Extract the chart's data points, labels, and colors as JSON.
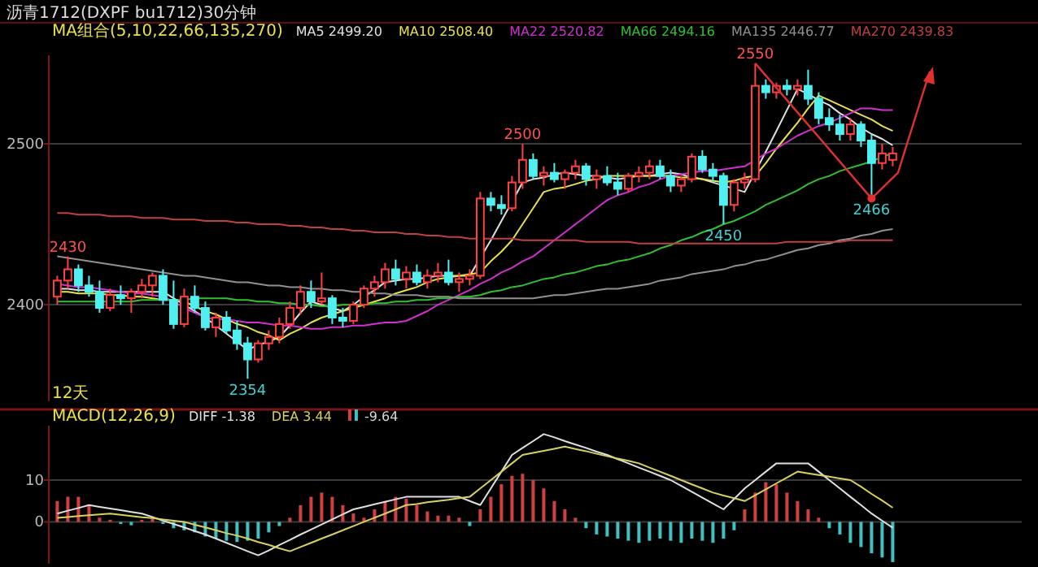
{
  "chart_data": [
    {
      "type": "candlestick",
      "title": "沥青1712(DXPF bu1712)30分钟",
      "legend_title": "MA组合(5,10,22,66,135,270)",
      "legend": "top",
      "grid": "y",
      "tick_labels": "y",
      "categories": [
        null,
        null,
        null,
        null,
        null,
        null,
        null,
        null,
        null,
        null,
        null,
        null,
        null,
        null,
        null,
        null,
        null,
        null,
        null,
        null,
        null,
        null,
        null,
        null,
        null,
        null,
        null,
        null,
        null,
        null,
        null,
        null,
        null,
        null,
        null,
        null,
        null,
        null,
        null,
        null,
        null,
        null,
        null,
        null,
        null,
        null,
        null,
        null,
        null,
        null,
        null,
        null,
        null,
        null,
        null,
        null,
        null,
        null,
        null,
        null,
        null,
        null,
        null,
        null,
        null,
        null,
        null,
        null,
        null,
        null,
        null,
        null,
        null,
        null,
        null,
        null,
        null,
        null,
        null,
        null
      ],
      "ohlc": [
        [
          2405,
          2418,
          2400,
          2415
        ],
        [
          2415,
          2430,
          2410,
          2422
        ],
        [
          2422,
          2425,
          2408,
          2412
        ],
        [
          2412,
          2418,
          2405,
          2408
        ],
        [
          2408,
          2415,
          2395,
          2398
        ],
        [
          2398,
          2410,
          2396,
          2406
        ],
        [
          2406,
          2412,
          2400,
          2404
        ],
        [
          2404,
          2410,
          2395,
          2408
        ],
        [
          2408,
          2416,
          2404,
          2412
        ],
        [
          2412,
          2420,
          2405,
          2418
        ],
        [
          2418,
          2422,
          2400,
          2403
        ],
        [
          2403,
          2415,
          2385,
          2388
        ],
        [
          2388,
          2410,
          2386,
          2405
        ],
        [
          2405,
          2412,
          2395,
          2398
        ],
        [
          2398,
          2402,
          2384,
          2386
        ],
        [
          2386,
          2395,
          2380,
          2392
        ],
        [
          2392,
          2396,
          2382,
          2384
        ],
        [
          2384,
          2390,
          2372,
          2376
        ],
        [
          2376,
          2380,
          2354,
          2366
        ],
        [
          2366,
          2378,
          2364,
          2376
        ],
        [
          2376,
          2384,
          2372,
          2380
        ],
        [
          2380,
          2392,
          2376,
          2388
        ],
        [
          2388,
          2402,
          2385,
          2398
        ],
        [
          2398,
          2412,
          2394,
          2408
        ],
        [
          2408,
          2415,
          2398,
          2402
        ],
        [
          2402,
          2420,
          2400,
          2404
        ],
        [
          2404,
          2406,
          2388,
          2392
        ],
        [
          2392,
          2398,
          2386,
          2390
        ],
        [
          2390,
          2402,
          2388,
          2400
        ],
        [
          2400,
          2412,
          2398,
          2410
        ],
        [
          2410,
          2418,
          2405,
          2414
        ],
        [
          2414,
          2426,
          2410,
          2422
        ],
        [
          2422,
          2428,
          2412,
          2416
        ],
        [
          2416,
          2424,
          2410,
          2420
        ],
        [
          2420,
          2425,
          2412,
          2414
        ],
        [
          2414,
          2422,
          2410,
          2418
        ],
        [
          2418,
          2426,
          2414,
          2420
        ],
        [
          2420,
          2428,
          2412,
          2414
        ],
        [
          2414,
          2420,
          2408,
          2416
        ],
        [
          2416,
          2422,
          2412,
          2418
        ],
        [
          2418,
          2470,
          2416,
          2466
        ],
        [
          2466,
          2470,
          2458,
          2462
        ],
        [
          2462,
          2468,
          2456,
          2460
        ],
        [
          2460,
          2480,
          2458,
          2476
        ],
        [
          2476,
          2500,
          2472,
          2490
        ],
        [
          2490,
          2494,
          2478,
          2480
        ],
        [
          2480,
          2486,
          2474,
          2482
        ],
        [
          2482,
          2488,
          2476,
          2478
        ],
        [
          2478,
          2484,
          2472,
          2482
        ],
        [
          2482,
          2490,
          2478,
          2486
        ],
        [
          2486,
          2488,
          2474,
          2478
        ],
        [
          2478,
          2484,
          2472,
          2480
        ],
        [
          2480,
          2486,
          2474,
          2476
        ],
        [
          2476,
          2482,
          2468,
          2472
        ],
        [
          2472,
          2482,
          2470,
          2480
        ],
        [
          2480,
          2486,
          2476,
          2482
        ],
        [
          2482,
          2490,
          2478,
          2486
        ],
        [
          2486,
          2490,
          2478,
          2480
        ],
        [
          2480,
          2484,
          2470,
          2474
        ],
        [
          2474,
          2480,
          2470,
          2478
        ],
        [
          2478,
          2494,
          2476,
          2492
        ],
        [
          2492,
          2496,
          2482,
          2484
        ],
        [
          2484,
          2488,
          2476,
          2480
        ],
        [
          2480,
          2482,
          2450,
          2462
        ],
        [
          2462,
          2478,
          2458,
          2476
        ],
        [
          2476,
          2482,
          2472,
          2478
        ],
        [
          2478,
          2550,
          2476,
          2536
        ],
        [
          2536,
          2540,
          2528,
          2532
        ],
        [
          2532,
          2538,
          2528,
          2536
        ],
        [
          2536,
          2540,
          2530,
          2534
        ],
        [
          2534,
          2540,
          2530,
          2536
        ],
        [
          2536,
          2546,
          2524,
          2528
        ],
        [
          2528,
          2532,
          2512,
          2516
        ],
        [
          2516,
          2522,
          2508,
          2512
        ],
        [
          2512,
          2518,
          2502,
          2506
        ],
        [
          2506,
          2516,
          2502,
          2512
        ],
        [
          2512,
          2514,
          2498,
          2502
        ],
        [
          2502,
          2506,
          2466,
          2488
        ],
        [
          2488,
          2500,
          2484,
          2494
        ],
        [
          2490,
          2498,
          2486,
          2494
        ]
      ],
      "colors": [
        "#ff4040",
        "#ff4040",
        "#50f0f0",
        "#50f0f0",
        "#50f0f0",
        "#ff4040",
        "#50f0f0",
        "#ff4040",
        "#ff4040",
        "#ff4040",
        "#50f0f0",
        "#50f0f0",
        "#ff4040",
        "#50f0f0",
        "#50f0f0",
        "#ff4040",
        "#50f0f0",
        "#50f0f0",
        "#50f0f0",
        "#ff4040",
        "#ff4040",
        "#ff4040",
        "#ff4040",
        "#ff4040",
        "#50f0f0",
        "#ff4040",
        "#50f0f0",
        "#50f0f0",
        "#ff4040",
        "#ff4040",
        "#ff4040",
        "#ff4040",
        "#50f0f0",
        "#ff4040",
        "#50f0f0",
        "#ff4040",
        "#ff4040",
        "#50f0f0",
        "#ff4040",
        "#ff4040",
        "#ff4040",
        "#50f0f0",
        "#50f0f0",
        "#ff4040",
        "#ff4040",
        "#50f0f0",
        "#ff4040",
        "#50f0f0",
        "#ff4040",
        "#ff4040",
        "#50f0f0",
        "#ff4040",
        "#50f0f0",
        "#50f0f0",
        "#ff4040",
        "#ff4040",
        "#ff4040",
        "#50f0f0",
        "#50f0f0",
        "#ff4040",
        "#ff4040",
        "#50f0f0",
        "#50f0f0",
        "#50f0f0",
        "#ff4040",
        "#ff4040",
        "#ff4040",
        "#50f0f0",
        "#ff4040",
        "#50f0f0",
        "#ff4040",
        "#50f0f0",
        "#50f0f0",
        "#50f0f0",
        "#50f0f0",
        "#ff4040",
        "#50f0f0",
        "#50f0f0",
        "#ff4040",
        "#ff4040"
      ],
      "series": [
        {
          "name": "MA5 2499.20",
          "type": "line",
          "color": "#e0e0e0",
          "values": [
            2410,
            2410,
            2409,
            2409,
            2408,
            2408,
            2408,
            2408,
            2408,
            2408,
            2408,
            2404,
            2400,
            2396,
            2392,
            2387,
            2382,
            2377,
            2372,
            2375,
            2377,
            2380,
            2387,
            2395,
            2402,
            2400,
            2398,
            2396,
            2400,
            2405,
            2409,
            2414,
            2415,
            2416,
            2416,
            2417,
            2418,
            2418,
            2418,
            2418,
            2429,
            2440,
            2452,
            2464,
            2476,
            2478,
            2479,
            2481,
            2482,
            2481,
            2480,
            2480,
            2479,
            2478,
            2479,
            2480,
            2480,
            2481,
            2482,
            2481,
            2479,
            2478,
            2476,
            2474,
            2472,
            2470,
            null,
            2495,
            2508,
            2521,
            2534,
            2531,
            2527,
            2524,
            2519,
            2515,
            2510,
            2506,
            2503,
            2499
          ]
        },
        {
          "name": "MA10 2508.40",
          "type": "line",
          "color": "#e8e050",
          "values": [
            2408,
            2408,
            2407,
            2407,
            2407,
            2406,
            2406,
            2405,
            2405,
            2404,
            2403,
            2403,
            2402,
            2399,
            2396,
            2394,
            2391,
            2388,
            2386,
            2383,
            2381,
            2378,
            2382,
            2385,
            2389,
            2392,
            2394,
            2396,
            2398,
            2400,
            2402,
            2404,
            2407,
            2409,
            2411,
            2414,
            2416,
            2417,
            2418,
            2419,
            2420,
            2427,
            2433,
            2440,
            2450,
            2460,
            2470,
            2472,
            2473,
            2475,
            2477,
            2478,
            2480,
            2480,
            2480,
            2480,
            2480,
            2480,
            2480,
            2479,
            2479,
            2478,
            2477,
            2476,
            2477,
            2479,
            2480,
            2488,
            2497,
            2505,
            2513,
            2522,
            2530,
            2527,
            2524,
            2521,
            2518,
            2515,
            2511,
            2508
          ]
        },
        {
          "name": "MA22 2520.82",
          "type": "line",
          "color": "#d030d0",
          "values": [
            2413,
            2412,
            2411,
            2411,
            2410,
            2409,
            2408,
            2407,
            2407,
            2406,
            2405,
            2402,
            2398,
            2395,
            2392,
            2391,
            2391,
            2390,
            2389,
            2389,
            2388,
            2387,
            2387,
            2386,
            2385,
            2385,
            2386,
            2386,
            2387,
            2387,
            2388,
            2389,
            2389,
            2390,
            2393,
            2396,
            2400,
            2403,
            2406,
            2409,
            2413,
            2416,
            2420,
            2423,
            2427,
            2430,
            2435,
            2440,
            2445,
            2450,
            2455,
            2460,
            2465,
            2468,
            2470,
            2473,
            2475,
            2478,
            2480,
            2481,
            2482,
            2483,
            2483,
            2484,
            2485,
            2486,
            2490,
            2494,
            2497,
            2501,
            2505,
            2508,
            2511,
            2513,
            2516,
            2519,
            2522,
            2522,
            2521,
            2521
          ]
        },
        {
          "name": "MA66 2494.16",
          "type": "line",
          "color": "#30c030",
          "values": [
            2402,
            2402,
            2402,
            2402,
            2402,
            2402,
            2402,
            2402,
            2403,
            2403,
            2403,
            2403,
            2403,
            2404,
            2404,
            2404,
            2404,
            2403,
            2403,
            2402,
            2402,
            2401,
            2401,
            2400,
            2400,
            2399,
            2399,
            2400,
            2400,
            2400,
            2401,
            2401,
            2402,
            2402,
            2403,
            2403,
            2404,
            2404,
            2405,
            2405,
            2406,
            2408,
            2409,
            2411,
            2412,
            2414,
            2416,
            2417,
            2419,
            2420,
            2422,
            2424,
            2425,
            2427,
            2428,
            2430,
            2432,
            2435,
            2437,
            2440,
            2442,
            2445,
            2447,
            2450,
            2452,
            2455,
            2458,
            2462,
            2465,
            2468,
            2471,
            2475,
            2478,
            2480,
            2483,
            2485,
            2487,
            2489,
            2492,
            2494
          ]
        },
        {
          "name": "MA135 2446.77",
          "type": "line",
          "color": "#909090",
          "values": [
            2430,
            2429,
            2428,
            2427,
            2426,
            2425,
            2424,
            2423,
            2422,
            2421,
            2420,
            2419,
            2418,
            2418,
            2417,
            2416,
            2415,
            2414,
            2414,
            2413,
            2412,
            2412,
            2411,
            2411,
            2410,
            2410,
            2409,
            2409,
            2408,
            2408,
            2407,
            2407,
            2406,
            2406,
            2406,
            2405,
            2405,
            2405,
            2404,
            2404,
            2404,
            2404,
            2404,
            2404,
            2404,
            2404,
            2405,
            2406,
            2406,
            2407,
            2408,
            2409,
            2410,
            2410,
            2411,
            2412,
            2413,
            2415,
            2416,
            2417,
            2419,
            2420,
            2421,
            2422,
            2424,
            2425,
            2427,
            2428,
            2430,
            2432,
            2434,
            2435,
            2437,
            2438,
            2440,
            2441,
            2443,
            2444,
            2446,
            2447
          ]
        },
        {
          "name": "MA270 2439.83",
          "type": "line",
          "color": "#c04040",
          "values": [
            2457,
            2457,
            2456,
            2456,
            2456,
            2455,
            2455,
            2455,
            2454,
            2454,
            2454,
            2453,
            2453,
            2453,
            2452,
            2452,
            2452,
            2451,
            2451,
            2450,
            2450,
            2450,
            2449,
            2449,
            2448,
            2448,
            2447,
            2447,
            2446,
            2446,
            2445,
            2445,
            2445,
            2444,
            2444,
            2443,
            2443,
            2442,
            2442,
            2441,
            2441,
            2441,
            2441,
            2441,
            2440,
            2440,
            2440,
            2440,
            2440,
            2440,
            2439,
            2439,
            2439,
            2439,
            2439,
            2438,
            2438,
            2438,
            2438,
            2438,
            2438,
            2438,
            2438,
            2438,
            2438,
            2438,
            2438,
            2438,
            2438,
            2439,
            2439,
            2439,
            2439,
            2439,
            2439,
            2440,
            2440,
            2440,
            2440,
            2440
          ]
        }
      ],
      "ylim": [
        2340,
        2555
      ],
      "yticks": [
        2400,
        2500
      ],
      "annotations": [
        {
          "text": "2430",
          "y": 2430
        },
        {
          "text": "2354",
          "y": 2354
        },
        {
          "text": "2500",
          "y": 2500
        },
        {
          "text": "2450",
          "y": 2450
        },
        {
          "text": "2550",
          "y": 2550
        },
        {
          "text": "2466",
          "y": 2466
        },
        "12天"
      ]
    },
    {
      "type": "bar",
      "legend_title": "MACD(12,26,9)",
      "legend": "top left",
      "grid": "y",
      "tick_labels": "y",
      "categories": [
        null,
        null,
        null,
        null,
        null,
        null,
        null,
        null,
        null,
        null,
        null,
        null,
        null,
        null,
        null,
        null,
        null,
        null,
        null,
        null,
        null,
        null,
        null,
        null,
        null,
        null,
        null,
        null,
        null,
        null,
        null,
        null,
        null,
        null,
        null,
        null,
        null,
        null,
        null,
        null,
        null,
        null,
        null,
        null,
        null,
        null,
        null,
        null,
        null,
        null,
        null,
        null,
        null,
        null,
        null,
        null,
        null,
        null,
        null,
        null,
        null,
        null,
        null,
        null,
        null,
        null,
        null,
        null,
        null,
        null,
        null,
        null,
        null,
        null,
        null,
        null,
        null,
        null,
        null,
        null
      ],
      "series": [
        {
          "name": "DIFF -1.38",
          "type": "line",
          "color": "#e0e0e0",
          "values": [
            2,
            2.7,
            3.3,
            4,
            3.6,
            3.2,
            2.8,
            2.4,
            2,
            1.2,
            0.3,
            -0.5,
            -1.3,
            -2.2,
            -3,
            -4,
            -5,
            -6,
            -7,
            -8,
            -6.8,
            -5.5,
            -4.3,
            -3,
            -1.8,
            -0.6,
            0.6,
            1.8,
            3,
            3.6,
            4.2,
            4.8,
            5.4,
            6,
            6,
            6,
            6,
            6,
            6,
            5,
            4,
            8,
            12,
            16,
            17.7,
            19.3,
            21,
            20.2,
            19.3,
            18.5,
            17.7,
            16.8,
            16,
            15,
            14,
            13,
            12,
            11,
            10,
            8.6,
            7.2,
            5.8,
            4.4,
            3,
            5.5,
            8,
            10,
            12,
            14,
            14,
            14,
            14,
            12,
            10,
            8,
            6,
            4,
            2,
            0.3,
            -1.4
          ]
        },
        {
          "name": "DEA 3.44",
          "type": "line",
          "color": "#d8d060",
          "values": [
            1,
            1.2,
            1.4,
            1.6,
            1.8,
            2,
            1.7,
            1.4,
            1.1,
            0.9,
            0.6,
            0.3,
            0,
            -0.7,
            -1.3,
            -2,
            -2.7,
            -3.3,
            -4,
            -4.8,
            -5.5,
            -6.3,
            -7,
            -6,
            -5,
            -4,
            -3,
            -2,
            -1,
            0,
            1,
            2,
            3,
            4,
            4.3,
            4.7,
            5,
            5.3,
            5.7,
            6,
            8,
            10,
            12,
            14,
            16,
            16.5,
            17,
            17.5,
            18,
            17.4,
            16.9,
            16.3,
            15.7,
            15.1,
            14.6,
            14,
            13,
            12,
            11,
            10,
            9,
            8,
            7,
            6.3,
            5.7,
            5,
            6.4,
            7.8,
            9.2,
            10.6,
            12,
            11.6,
            11.2,
            10.8,
            10.4,
            10,
            8.4,
            6.7,
            5.1,
            3.4
          ]
        },
        {
          "name": "-9.64",
          "type": "bar",
          "color": "#d8d8d8",
          "values": [
            5,
            6,
            6,
            4,
            1,
            0.5,
            -0.5,
            -0.8,
            0.5,
            0.8,
            -0.5,
            -1.5,
            -2,
            -2.5,
            -3.5,
            -4,
            -4.5,
            -4.8,
            -4.5,
            -4,
            -2.5,
            -1,
            1,
            4,
            6,
            7,
            6,
            4,
            2,
            1,
            3,
            5,
            6,
            5.5,
            4,
            2.5,
            1.5,
            1.5,
            1,
            -1,
            3,
            6,
            9,
            11,
            11.5,
            10,
            8,
            5,
            3,
            1,
            -1.5,
            -3,
            -3.5,
            -4,
            -4.5,
            -5,
            -4.5,
            -4,
            -4.5,
            -5,
            -4,
            -4.5,
            -5,
            -4,
            -2,
            3,
            7,
            9.5,
            9,
            7,
            5,
            3,
            1,
            -1.5,
            -3,
            -5,
            -6,
            -7.5,
            -8.5,
            -9.6
          ],
          "colors": [
            "#d04040",
            "#d04040",
            "#d04040",
            "#d04040",
            "#d04040",
            "#d04040",
            "#40c0c0",
            "#40c0c0",
            "#d04040",
            "#d04040",
            "#40c0c0",
            "#40c0c0",
            "#40c0c0",
            "#40c0c0",
            "#40c0c0",
            "#40c0c0",
            "#40c0c0",
            "#40c0c0",
            "#40c0c0",
            "#40c0c0",
            "#40c0c0",
            "#40c0c0",
            "#d04040",
            "#d04040",
            "#d04040",
            "#d04040",
            "#d04040",
            "#d04040",
            "#d04040",
            "#d04040",
            "#d04040",
            "#d04040",
            "#d04040",
            "#d04040",
            "#d04040",
            "#d04040",
            "#d04040",
            "#d04040",
            "#d04040",
            "#40c0c0",
            "#d04040",
            "#d04040",
            "#d04040",
            "#d04040",
            "#d04040",
            "#d04040",
            "#d04040",
            "#d04040",
            "#d04040",
            "#d04040",
            "#40c0c0",
            "#40c0c0",
            "#40c0c0",
            "#40c0c0",
            "#40c0c0",
            "#40c0c0",
            "#40c0c0",
            "#40c0c0",
            "#40c0c0",
            "#40c0c0",
            "#40c0c0",
            "#40c0c0",
            "#40c0c0",
            "#40c0c0",
            "#40c0c0",
            "#d04040",
            "#d04040",
            "#d04040",
            "#d04040",
            "#d04040",
            "#d04040",
            "#d04040",
            "#d04040",
            "#40c0c0",
            "#40c0c0",
            "#40c0c0",
            "#40c0c0",
            "#40c0c0",
            "#40c0c0",
            "#40c0c0"
          ]
        }
      ],
      "ylim": [
        -10,
        23
      ],
      "yticks": [
        0,
        10
      ]
    }
  ]
}
